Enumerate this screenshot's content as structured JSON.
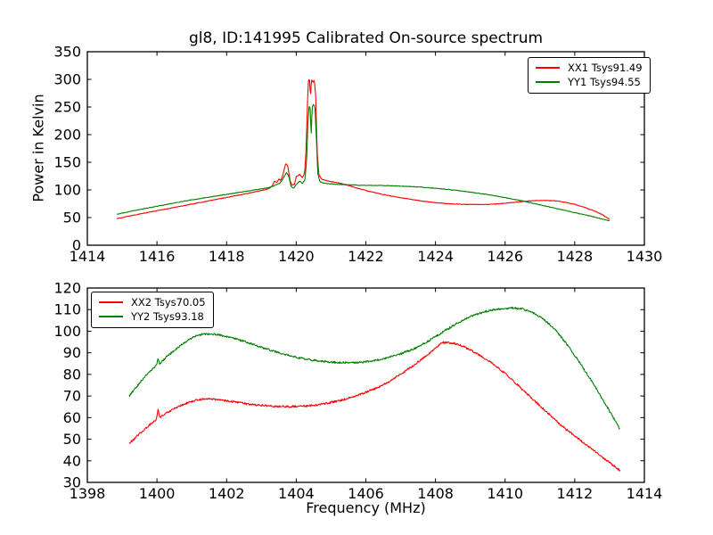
{
  "figure": {
    "background": "#ffffff",
    "frame_color": "#000000"
  },
  "chart_data": [
    {
      "type": "line",
      "title": "gl8, ID:141995 Calibrated On-source spectrum",
      "xlabel": "",
      "ylabel": "Power in Kelvin",
      "xlim": [
        1414,
        1430
      ],
      "ylim": [
        0,
        350
      ],
      "xticks": [
        1414,
        1416,
        1418,
        1420,
        1422,
        1424,
        1426,
        1428,
        1430
      ],
      "yticks": [
        0,
        50,
        100,
        150,
        200,
        250,
        300,
        350
      ],
      "grid": false,
      "legend": {
        "position": "top-right",
        "entries": [
          {
            "label": "XX1 Tsys91.49",
            "color": "#ff0000"
          },
          {
            "label": "YY1 Tsys94.55",
            "color": "#008000"
          }
        ]
      },
      "series": [
        {
          "name": "XX1",
          "color": "#ff0000",
          "noise": 0.5,
          "points": [
            [
              1414.85,
              48
            ],
            [
              1415.3,
              54
            ],
            [
              1415.8,
              60
            ],
            [
              1416.3,
              66
            ],
            [
              1416.8,
              72
            ],
            [
              1417.3,
              78
            ],
            [
              1417.8,
              84
            ],
            [
              1418.3,
              90
            ],
            [
              1418.7,
              95
            ],
            [
              1419.0,
              99
            ],
            [
              1419.2,
              102
            ],
            [
              1419.3,
              106
            ],
            [
              1419.38,
              116
            ],
            [
              1419.44,
              113
            ],
            [
              1419.5,
              120
            ],
            [
              1419.56,
              117
            ],
            [
              1419.62,
              128
            ],
            [
              1419.7,
              148
            ],
            [
              1419.76,
              143
            ],
            [
              1419.82,
              118
            ],
            [
              1419.87,
              109
            ],
            [
              1419.95,
              110
            ],
            [
              1420.0,
              124
            ],
            [
              1420.1,
              128
            ],
            [
              1420.18,
              122
            ],
            [
              1420.24,
              130
            ],
            [
              1420.28,
              170
            ],
            [
              1420.32,
              250
            ],
            [
              1420.35,
              297
            ],
            [
              1420.38,
              302
            ],
            [
              1420.41,
              268
            ],
            [
              1420.44,
              300
            ],
            [
              1420.48,
              295
            ],
            [
              1420.52,
              299
            ],
            [
              1420.56,
              270
            ],
            [
              1420.6,
              170
            ],
            [
              1420.65,
              128
            ],
            [
              1420.72,
              120
            ],
            [
              1420.85,
              117
            ],
            [
              1421.1,
              114
            ],
            [
              1421.4,
              110
            ],
            [
              1421.7,
              104
            ],
            [
              1422.0,
              99
            ],
            [
              1422.4,
              93
            ],
            [
              1422.8,
              88
            ],
            [
              1423.2,
              84
            ],
            [
              1423.6,
              80
            ],
            [
              1424.0,
              77
            ],
            [
              1424.4,
              75
            ],
            [
              1424.8,
              74
            ],
            [
              1425.2,
              73.5
            ],
            [
              1425.6,
              74
            ],
            [
              1426.0,
              76
            ],
            [
              1426.4,
              78.5
            ],
            [
              1426.8,
              80.5
            ],
            [
              1427.1,
              81
            ],
            [
              1427.4,
              80.5
            ],
            [
              1427.7,
              78
            ],
            [
              1428.0,
              74
            ],
            [
              1428.3,
              68
            ],
            [
              1428.6,
              61
            ],
            [
              1428.8,
              55
            ],
            [
              1429.0,
              47
            ]
          ]
        },
        {
          "name": "YY1",
          "color": "#008000",
          "noise": 0.5,
          "points": [
            [
              1414.85,
              56
            ],
            [
              1415.3,
              62
            ],
            [
              1415.8,
              68
            ],
            [
              1416.3,
              74
            ],
            [
              1416.8,
              80
            ],
            [
              1417.3,
              85
            ],
            [
              1417.8,
              90
            ],
            [
              1418.3,
              95
            ],
            [
              1418.7,
              99
            ],
            [
              1419.0,
              102
            ],
            [
              1419.2,
              104
            ],
            [
              1419.35,
              107
            ],
            [
              1419.45,
              110
            ],
            [
              1419.55,
              113
            ],
            [
              1419.65,
              124
            ],
            [
              1419.72,
              131
            ],
            [
              1419.78,
              126
            ],
            [
              1419.85,
              107
            ],
            [
              1419.92,
              103
            ],
            [
              1420.0,
              110
            ],
            [
              1420.1,
              116
            ],
            [
              1420.18,
              112
            ],
            [
              1420.25,
              118
            ],
            [
              1420.3,
              155
            ],
            [
              1420.34,
              225
            ],
            [
              1420.37,
              252
            ],
            [
              1420.4,
              248
            ],
            [
              1420.43,
              200
            ],
            [
              1420.46,
              250
            ],
            [
              1420.5,
              255
            ],
            [
              1420.54,
              248
            ],
            [
              1420.58,
              190
            ],
            [
              1420.62,
              130
            ],
            [
              1420.68,
              115
            ],
            [
              1420.8,
              112
            ],
            [
              1421.2,
              110
            ],
            [
              1421.8,
              108.5
            ],
            [
              1422.4,
              108
            ],
            [
              1423.0,
              107
            ],
            [
              1423.5,
              105.5
            ],
            [
              1424.0,
              103
            ],
            [
              1424.5,
              100
            ],
            [
              1425.0,
              96
            ],
            [
              1425.5,
              91.5
            ],
            [
              1426.0,
              86
            ],
            [
              1426.5,
              80
            ],
            [
              1427.0,
              73
            ],
            [
              1427.5,
              66
            ],
            [
              1428.0,
              59
            ],
            [
              1428.5,
              52
            ],
            [
              1429.0,
              44
            ]
          ]
        }
      ]
    },
    {
      "type": "line",
      "title": "",
      "xlabel": "Frequency (MHz)",
      "ylabel": "",
      "xlim": [
        1398,
        1414
      ],
      "ylim": [
        30,
        120
      ],
      "xticks": [
        1398,
        1400,
        1402,
        1404,
        1406,
        1408,
        1410,
        1412,
        1414
      ],
      "yticks": [
        30,
        40,
        50,
        60,
        70,
        80,
        90,
        100,
        110,
        120
      ],
      "grid": false,
      "legend": {
        "position": "top-left",
        "entries": [
          {
            "label": "XX2 Tsys70.05",
            "color": "#ff0000"
          },
          {
            "label": "YY2 Tsys93.18",
            "color": "#008000"
          }
        ]
      },
      "series": [
        {
          "name": "XX2",
          "color": "#ff0000",
          "noise": 0.45,
          "points": [
            [
              1399.2,
              48
            ],
            [
              1399.4,
              51
            ],
            [
              1399.6,
              54
            ],
            [
              1399.8,
              56.8
            ],
            [
              1399.98,
              59
            ],
            [
              1400.03,
              64
            ],
            [
              1400.08,
              60
            ],
            [
              1400.3,
              62.5
            ],
            [
              1400.6,
              65
            ],
            [
              1400.9,
              67
            ],
            [
              1401.2,
              68.3
            ],
            [
              1401.5,
              68.6
            ],
            [
              1401.8,
              68.2
            ],
            [
              1402.2,
              67.3
            ],
            [
              1402.6,
              66.3
            ],
            [
              1403.0,
              65.6
            ],
            [
              1403.4,
              65.2
            ],
            [
              1403.8,
              65.1
            ],
            [
              1404.2,
              65.3
            ],
            [
              1404.6,
              65.8
            ],
            [
              1405.0,
              67
            ],
            [
              1405.4,
              68.5
            ],
            [
              1405.8,
              70.5
            ],
            [
              1406.2,
              73
            ],
            [
              1406.6,
              76
            ],
            [
              1407.0,
              80
            ],
            [
              1407.4,
              84.5
            ],
            [
              1407.8,
              89.5
            ],
            [
              1408.2,
              94.8
            ],
            [
              1408.5,
              94.5
            ],
            [
              1408.8,
              93
            ],
            [
              1409.2,
              89.5
            ],
            [
              1409.6,
              85.5
            ],
            [
              1410.0,
              80.5
            ],
            [
              1410.4,
              74.5
            ],
            [
              1410.8,
              68.5
            ],
            [
              1411.2,
              62.5
            ],
            [
              1411.6,
              56.5
            ],
            [
              1412.0,
              51.5
            ],
            [
              1412.4,
              46.5
            ],
            [
              1412.8,
              41.5
            ],
            [
              1413.1,
              38
            ],
            [
              1413.3,
              35.5
            ]
          ]
        },
        {
          "name": "YY2",
          "color": "#008000",
          "noise": 0.45,
          "points": [
            [
              1399.2,
              70
            ],
            [
              1399.4,
              74
            ],
            [
              1399.6,
              78
            ],
            [
              1399.8,
              81.5
            ],
            [
              1399.98,
              84
            ],
            [
              1400.03,
              87
            ],
            [
              1400.08,
              85
            ],
            [
              1400.3,
              88.5
            ],
            [
              1400.6,
              92.5
            ],
            [
              1400.9,
              96
            ],
            [
              1401.2,
              98.3
            ],
            [
              1401.5,
              98.8
            ],
            [
              1401.8,
              98.3
            ],
            [
              1402.2,
              96.8
            ],
            [
              1402.6,
              94.8
            ],
            [
              1403.0,
              92.5
            ],
            [
              1403.4,
              90.5
            ],
            [
              1403.8,
              88.7
            ],
            [
              1404.2,
              87.3
            ],
            [
              1404.6,
              86.3
            ],
            [
              1405.0,
              85.7
            ],
            [
              1405.4,
              85.4
            ],
            [
              1405.8,
              85.5
            ],
            [
              1406.2,
              86.2
            ],
            [
              1406.6,
              87.5
            ],
            [
              1407.0,
              89.5
            ],
            [
              1407.4,
              92
            ],
            [
              1407.8,
              95.5
            ],
            [
              1408.2,
              99.5
            ],
            [
              1408.6,
              103.5
            ],
            [
              1409.0,
              106.8
            ],
            [
              1409.4,
              109
            ],
            [
              1409.8,
              110.3
            ],
            [
              1410.2,
              110.8
            ],
            [
              1410.5,
              110.3
            ],
            [
              1410.8,
              108.5
            ],
            [
              1411.1,
              105.5
            ],
            [
              1411.4,
              101.5
            ],
            [
              1411.8,
              93.5
            ],
            [
              1412.2,
              84
            ],
            [
              1412.6,
              74
            ],
            [
              1413.0,
              63
            ],
            [
              1413.3,
              54.5
            ]
          ]
        }
      ]
    }
  ]
}
